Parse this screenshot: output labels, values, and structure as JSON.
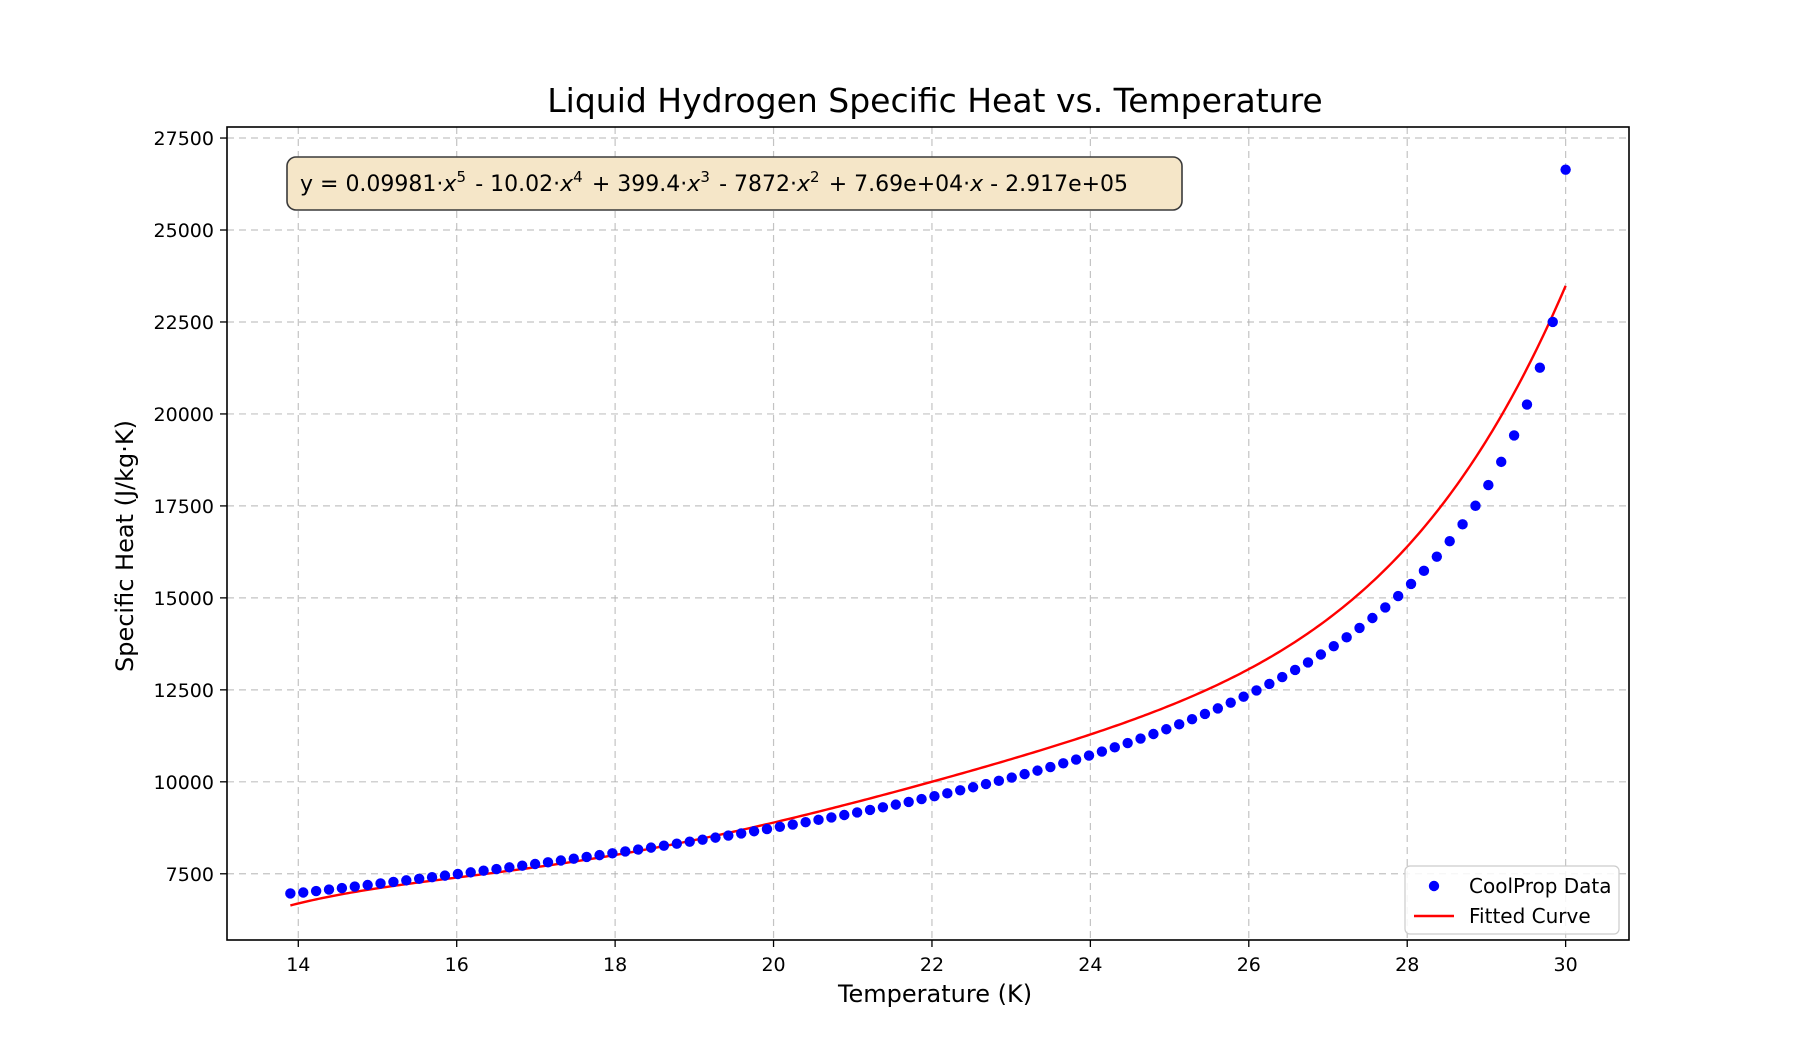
{
  "chart_data": {
    "type": "scatter",
    "title": "Liquid Hydrogen Specific Heat vs. Temperature",
    "xlabel": "Temperature (K)",
    "ylabel": "Specific Heat (J/kg·K)",
    "xlim": [
      13.1,
      30.8
    ],
    "ylim": [
      5700,
      27800
    ],
    "xticks": [
      14,
      16,
      18,
      20,
      22,
      24,
      26,
      28,
      30
    ],
    "yticks": [
      7500,
      10000,
      12500,
      15000,
      17500,
      20000,
      22500,
      25000,
      27500
    ],
    "grid": true,
    "legend_position": "lower-right",
    "annotation": {
      "text": "y = 0.09981·x^5 - 10.02·x^4 + 399.4·x^3 - 7872·x^2 + 7.69e+04·x - 2.917e+05",
      "position": "top-left",
      "background": "#f5e6c8"
    },
    "series": [
      {
        "name": "CoolProp Data",
        "kind": "scatter",
        "color": "#0000ff",
        "x_range": [
          13.9,
          30.0
        ],
        "n_points": 100,
        "y": [
          6965,
          6991,
          7030,
          7071,
          7112,
          7153,
          7195,
          7237,
          7279,
          7321,
          7364,
          7407,
          7450,
          7494,
          7538,
          7583,
          7628,
          7674,
          7720,
          7766,
          7813,
          7861,
          7909,
          7958,
          8007,
          8057,
          8108,
          8159,
          8211,
          8264,
          8317,
          8372,
          8427,
          8483,
          8540,
          8598,
          8656,
          8716,
          8777,
          8839,
          8902,
          8966,
          9032,
          9098,
          9167,
          9236,
          9307,
          9380,
          9454,
          9530,
          9608,
          9687,
          9769,
          9852,
          9938,
          10026,
          10116,
          10209,
          10304,
          10402,
          10503,
          10606,
          10713,
          10823,
          10937,
          11054,
          11175,
          11300,
          11429,
          11563,
          11702,
          11846,
          11996,
          12152,
          12314,
          12484,
          12661,
          12847,
          13041,
          13246,
          13461,
          13688,
          13928,
          14183,
          14453,
          14741,
          15049,
          15379,
          15735,
          16121,
          16540,
          16999,
          17504,
          18066,
          18697,
          19417,
          20256,
          21257,
          22502,
          26640
        ]
      },
      {
        "name": "Fitted Curve",
        "kind": "line",
        "color": "#ff0000",
        "coefficients": [
          0.09981,
          -10.02,
          399.4,
          -7872,
          76900,
          -291700
        ]
      }
    ]
  }
}
